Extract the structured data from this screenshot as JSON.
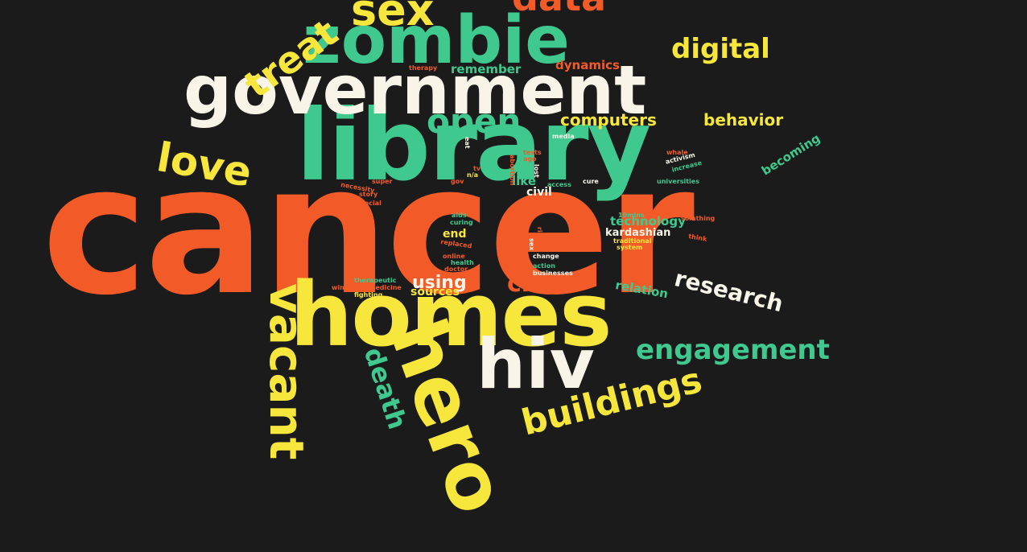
{
  "palette": {
    "orange": "#f25a28",
    "green": "#3fc98f",
    "yellow": "#f7e63b",
    "cream": "#f8f4e8",
    "background": "#1b1b1b"
  },
  "words": {
    "cancer": "cancer",
    "library": "library",
    "government": "government",
    "homes": "homes",
    "zombie": "zombie",
    "hero": "hero",
    "hiv": "hiv",
    "vacant": "vacant",
    "sex": "sex",
    "data": "data",
    "treat": "treat",
    "digital": "digital",
    "love": "love",
    "open": "open",
    "computers": "computers",
    "behavior": "behavior",
    "research": "research",
    "engagement": "engagement",
    "buildings": "buildings",
    "death": "death",
    "civic": "civic",
    "using": "using",
    "sources": "sources",
    "relation": "relation",
    "technology": "technology",
    "kardashian": "kardashian",
    "end": "end",
    "civil": "civil",
    "like": "like",
    "becoming": "becoming",
    "remember": "remember",
    "dynamics": "dynamics",
    "therapy": "therapy",
    "aids": "aids",
    "curing": "curing",
    "replaced": "replaced",
    "online": "online",
    "health": "health",
    "doctor": "doctor",
    "therapeutic": "therapeutic",
    "window": "window",
    "medicine": "medicine",
    "fighting": "fighting",
    "traditional": "traditional",
    "system": "system",
    "10mins": "10mins",
    "somthing": "somthing",
    "think": "think",
    "change": "change",
    "action": "action",
    "businesses": "businesses",
    "reality": "reality",
    "future": "future",
    "access": "access",
    "cure": "cure",
    "activism": "activism",
    "increase": "increase",
    "universities": "universities",
    "whale": "whale",
    "media": "media",
    "tests": "tests",
    "ago": "ago",
    "abortion": "abortion",
    "lost": "lost",
    "gov": "gov",
    "tv": "tv",
    "na": "n/a",
    "super": "super",
    "necessity": "necessity",
    "story": "story",
    "social": "social",
    "sex_small": "sex",
    "rich": "rich",
    "eat": "eat"
  }
}
